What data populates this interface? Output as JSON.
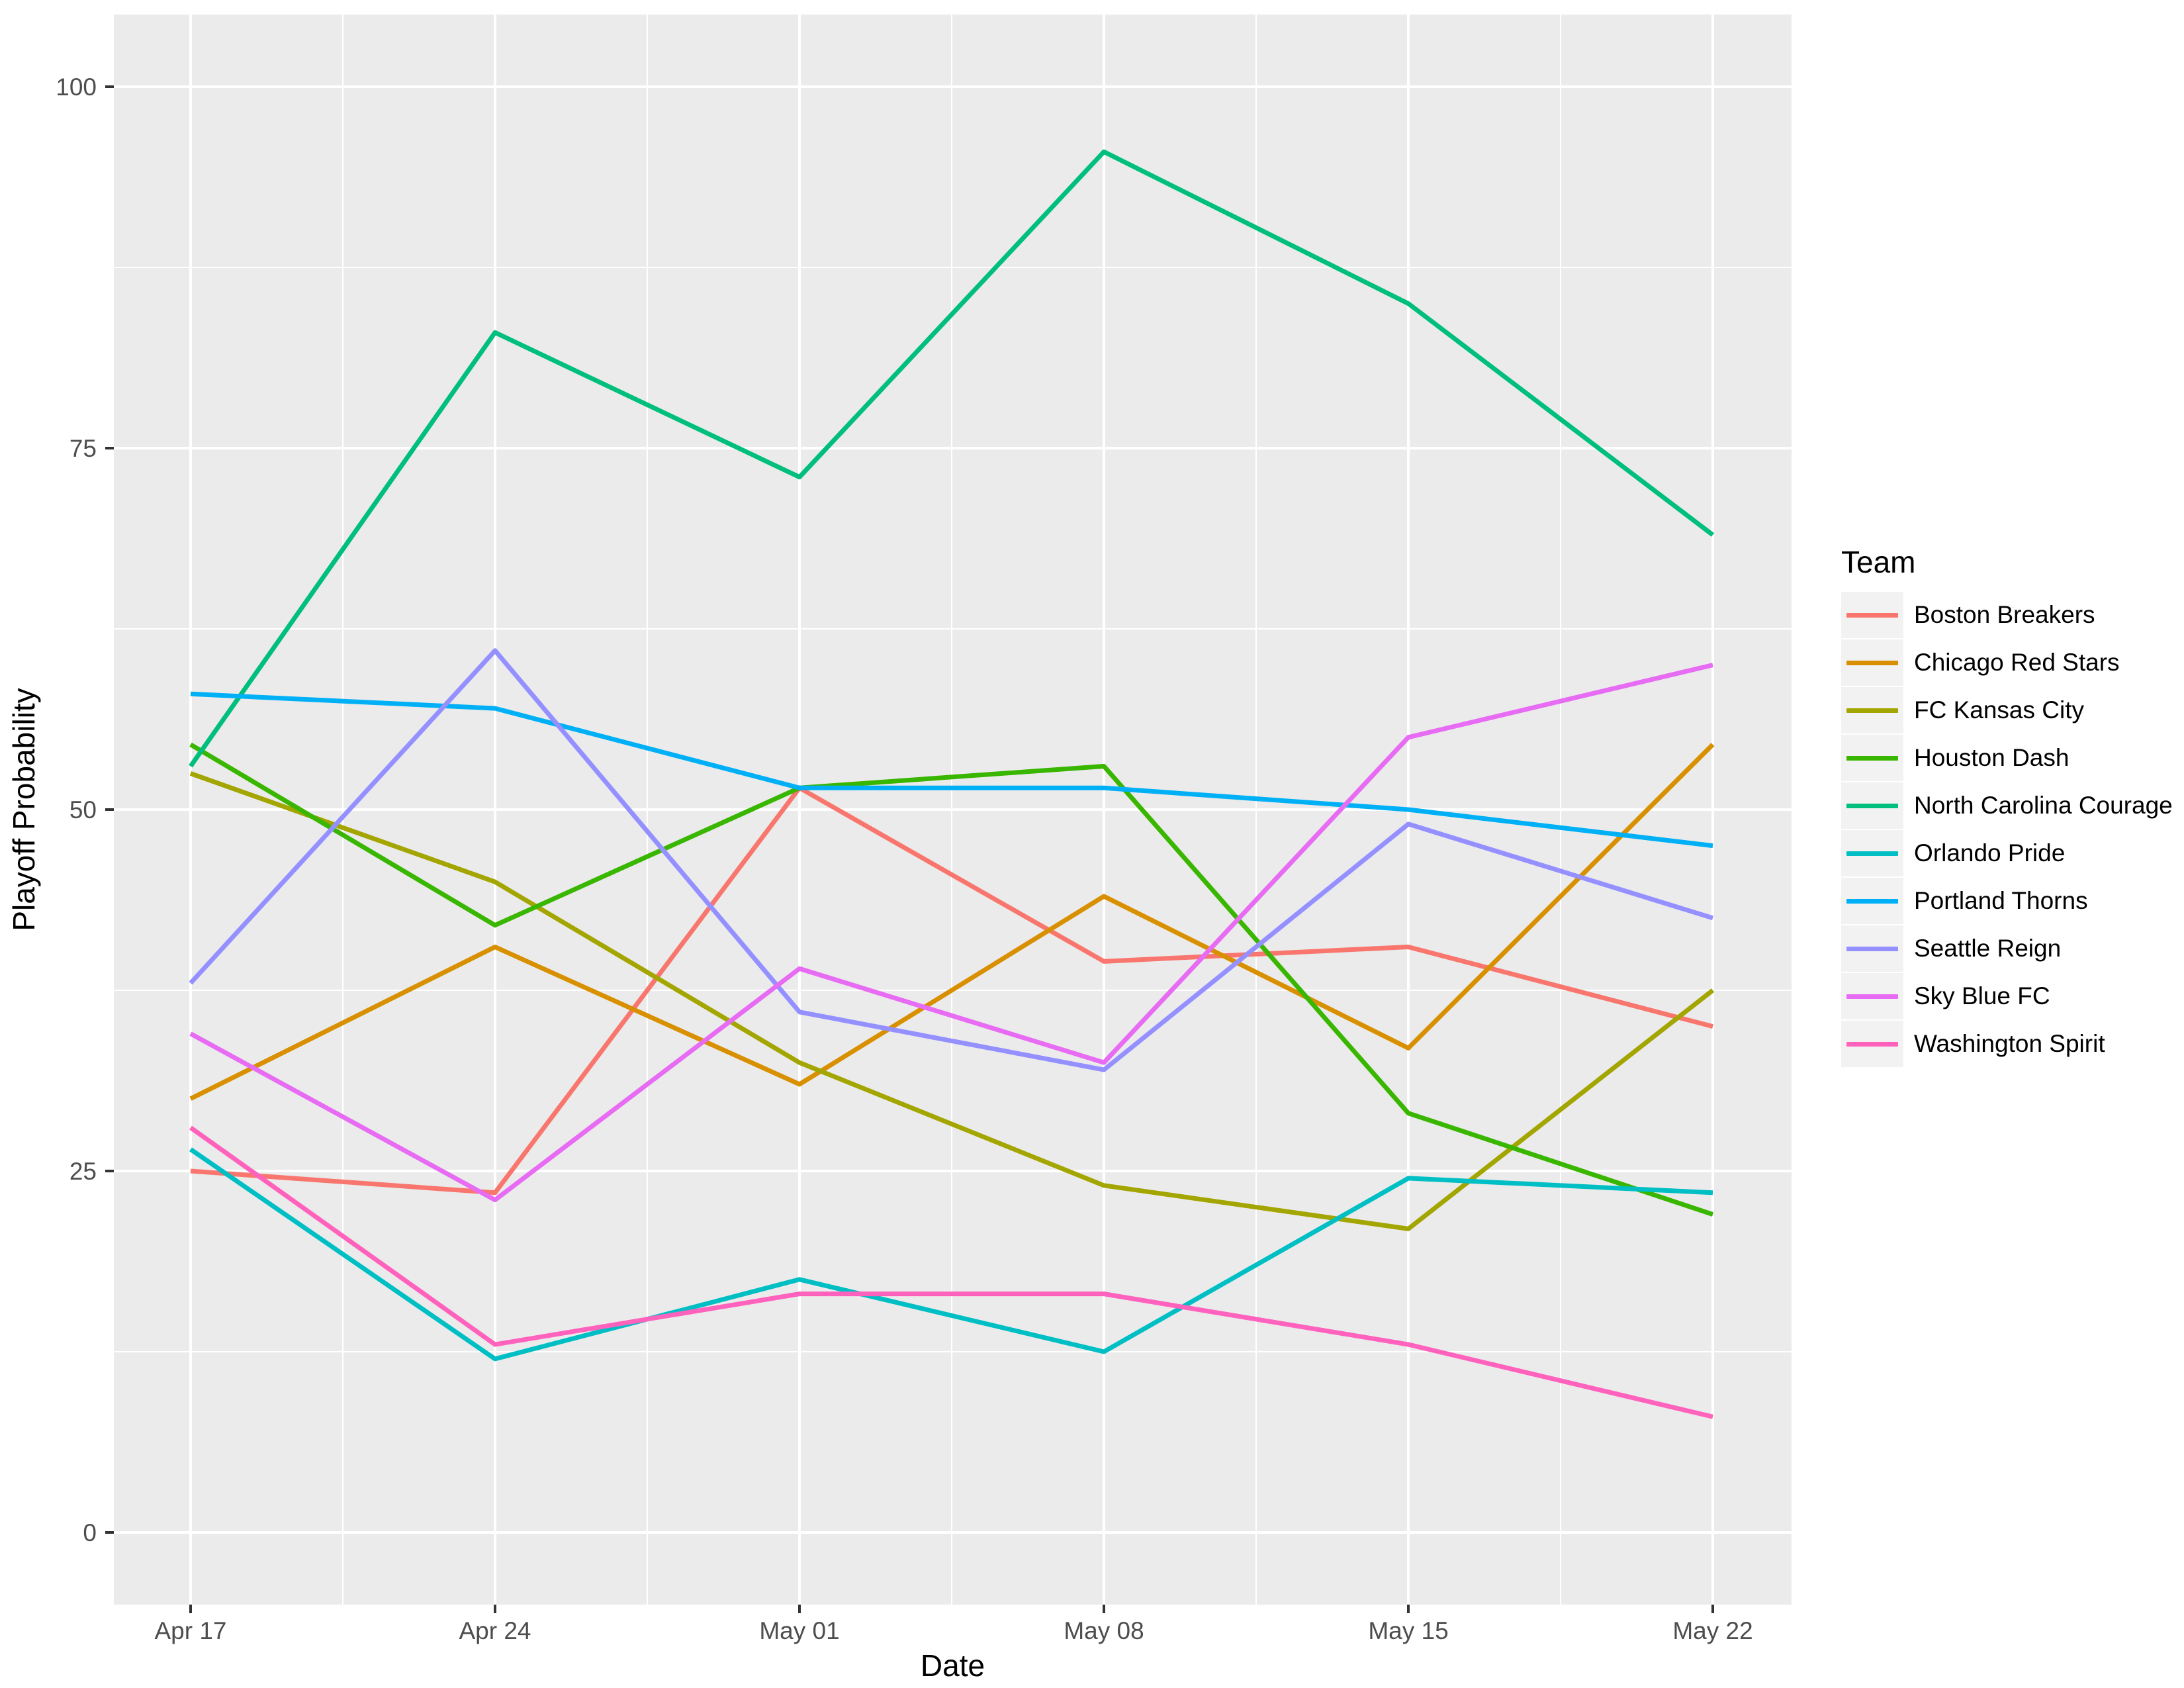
{
  "figure": {
    "y_title": "Playoff Probability",
    "x_title": "Date",
    "legend_title": "Team"
  },
  "axes": {
    "x_tick_labels": [
      "Apr 17",
      "Apr 24",
      "May 01",
      "May 08",
      "May 15",
      "May 22"
    ],
    "y_tick_labels": [
      "0",
      "25",
      "50",
      "75",
      "100"
    ]
  },
  "colors": {
    "panel_background": "#EBEBEB",
    "gridline": "#FFFFFF",
    "tick_mark": "#333333",
    "tick_text": "#4D4D4D",
    "axis_title_text": "#000000",
    "legend_key_background": "#F2F2F2"
  },
  "chart_data": {
    "type": "line",
    "title": "",
    "xlabel": "Date",
    "ylabel": "Playoff Probability",
    "x": [
      "Apr 17",
      "Apr 24",
      "May 01",
      "May 08",
      "May 15",
      "May 22"
    ],
    "ylim": [
      -5,
      105
    ],
    "y_major_ticks": [
      0,
      25,
      50,
      75,
      100
    ],
    "y_minor_gridlines": [
      12.5,
      37.5,
      62.5,
      87.5
    ],
    "grid": "white major and minor gridlines on grey panel",
    "legend_position": "right",
    "legend_title": "Team",
    "series": [
      {
        "name": "Boston Breakers",
        "color": "#F8766D",
        "values": [
          25,
          23.5,
          51.5,
          39.5,
          40.5,
          35
        ]
      },
      {
        "name": "Chicago Red Stars",
        "color": "#D89000",
        "values": [
          30,
          40.5,
          31,
          44,
          33.5,
          54.5
        ]
      },
      {
        "name": "FC Kansas City",
        "color": "#A3A500",
        "values": [
          52.5,
          45,
          32.5,
          24,
          21,
          37.5
        ]
      },
      {
        "name": "Houston Dash",
        "color": "#39B600",
        "values": [
          54.5,
          42,
          51.5,
          53,
          29,
          22
        ]
      },
      {
        "name": "North Carolina Courage",
        "color": "#00BF7D",
        "values": [
          53,
          83,
          73,
          95.5,
          85,
          69
        ]
      },
      {
        "name": "Orlando Pride",
        "color": "#00BFC4",
        "values": [
          26.5,
          12,
          17.5,
          12.5,
          24.5,
          23.5
        ]
      },
      {
        "name": "Portland Thorns",
        "color": "#00B0F6",
        "values": [
          58,
          57,
          51.5,
          51.5,
          50,
          47.5
        ]
      },
      {
        "name": "Seattle Reign",
        "color": "#9590FF",
        "values": [
          38,
          61,
          36,
          32,
          49,
          42.5
        ]
      },
      {
        "name": "Sky Blue FC",
        "color": "#E76BF3",
        "values": [
          34.5,
          23,
          39,
          32.5,
          55,
          60
        ]
      },
      {
        "name": "Washington Spirit",
        "color": "#FF62BC",
        "values": [
          28,
          13,
          16.5,
          16.5,
          13,
          8
        ]
      }
    ]
  }
}
